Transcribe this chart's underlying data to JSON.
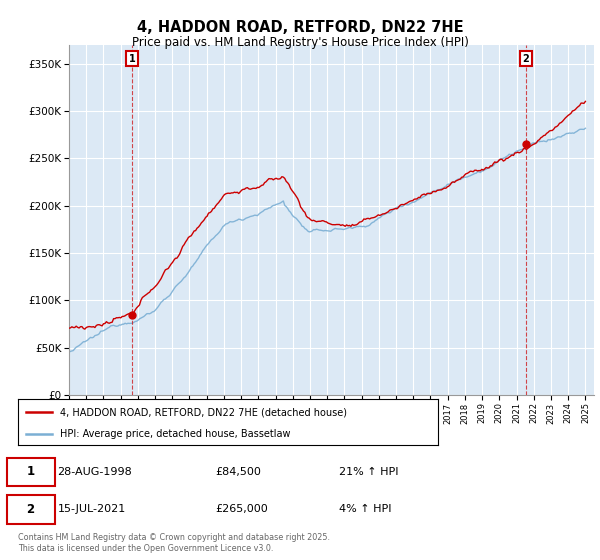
{
  "title": "4, HADDON ROAD, RETFORD, DN22 7HE",
  "subtitle": "Price paid vs. HM Land Registry's House Price Index (HPI)",
  "legend_entries": [
    "4, HADDON ROAD, RETFORD, DN22 7HE (detached house)",
    "HPI: Average price, detached house, Bassetlaw"
  ],
  "annotation1": {
    "label": "1",
    "date": "28-AUG-1998",
    "price": "£84,500",
    "hpi": "21% ↑ HPI"
  },
  "annotation2": {
    "label": "2",
    "date": "15-JUL-2021",
    "price": "£265,000",
    "hpi": "4% ↑ HPI"
  },
  "footer": "Contains HM Land Registry data © Crown copyright and database right 2025.\nThis data is licensed under the Open Government Licence v3.0.",
  "ylabel_ticks": [
    "£0",
    "£50K",
    "£100K",
    "£150K",
    "£200K",
    "£250K",
    "£300K",
    "£350K"
  ],
  "ylabel_values": [
    0,
    50000,
    100000,
    150000,
    200000,
    250000,
    300000,
    350000
  ],
  "ylim": [
    0,
    370000
  ],
  "red_color": "#cc0000",
  "blue_color": "#7bafd4",
  "plot_bg_color": "#dce9f5",
  "background_color": "#ffffff",
  "grid_color": "#ffffff",
  "purchase1_year": 1998.65,
  "purchase2_year": 2021.54,
  "marker1_value": 84500,
  "marker2_value": 265000
}
